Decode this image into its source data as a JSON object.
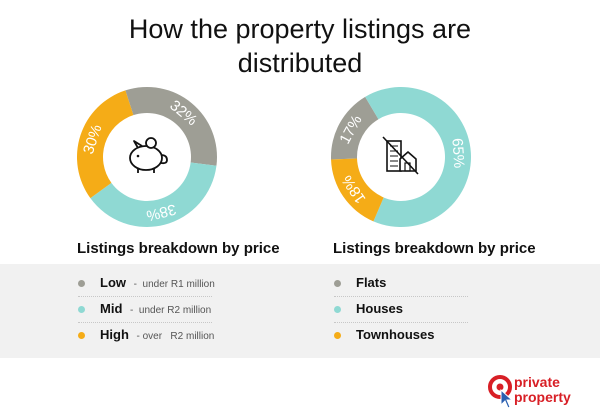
{
  "title": {
    "line1": "How the property listings are",
    "line2": "distributed"
  },
  "chart_data": [
    {
      "type": "pie",
      "title": "Listings breakdown by price",
      "center_icon": "piggy-bank-icon",
      "slices": [
        {
          "label": "Low",
          "detail_prefix": "-",
          "detail": "under R1 million",
          "value": 32,
          "value_label": "32%",
          "color": "#9e9e95"
        },
        {
          "label": "Mid",
          "detail_prefix": "-",
          "detail": "under R2 million",
          "value": 38,
          "value_label": "38%",
          "color": "#8fd9d3"
        },
        {
          "label": "High",
          "detail_prefix": "- over",
          "detail": "R2 million",
          "value": 30,
          "value_label": "30%",
          "color": "#f5ac17"
        }
      ]
    },
    {
      "type": "pie",
      "title": "Listings breakdown by price",
      "center_icon": "buildings-icon",
      "slices": [
        {
          "label": "Flats",
          "value": 17,
          "value_label": "17%",
          "color": "#9e9e95"
        },
        {
          "label": "Houses",
          "value": 65,
          "value_label": "65%",
          "color": "#8fd9d3"
        },
        {
          "label": "Townhouses",
          "value": 18,
          "value_label": "18%",
          "color": "#f5ac17"
        }
      ]
    }
  ],
  "logo": {
    "line1": "private",
    "line2": "property",
    "color": "#d81f26"
  }
}
